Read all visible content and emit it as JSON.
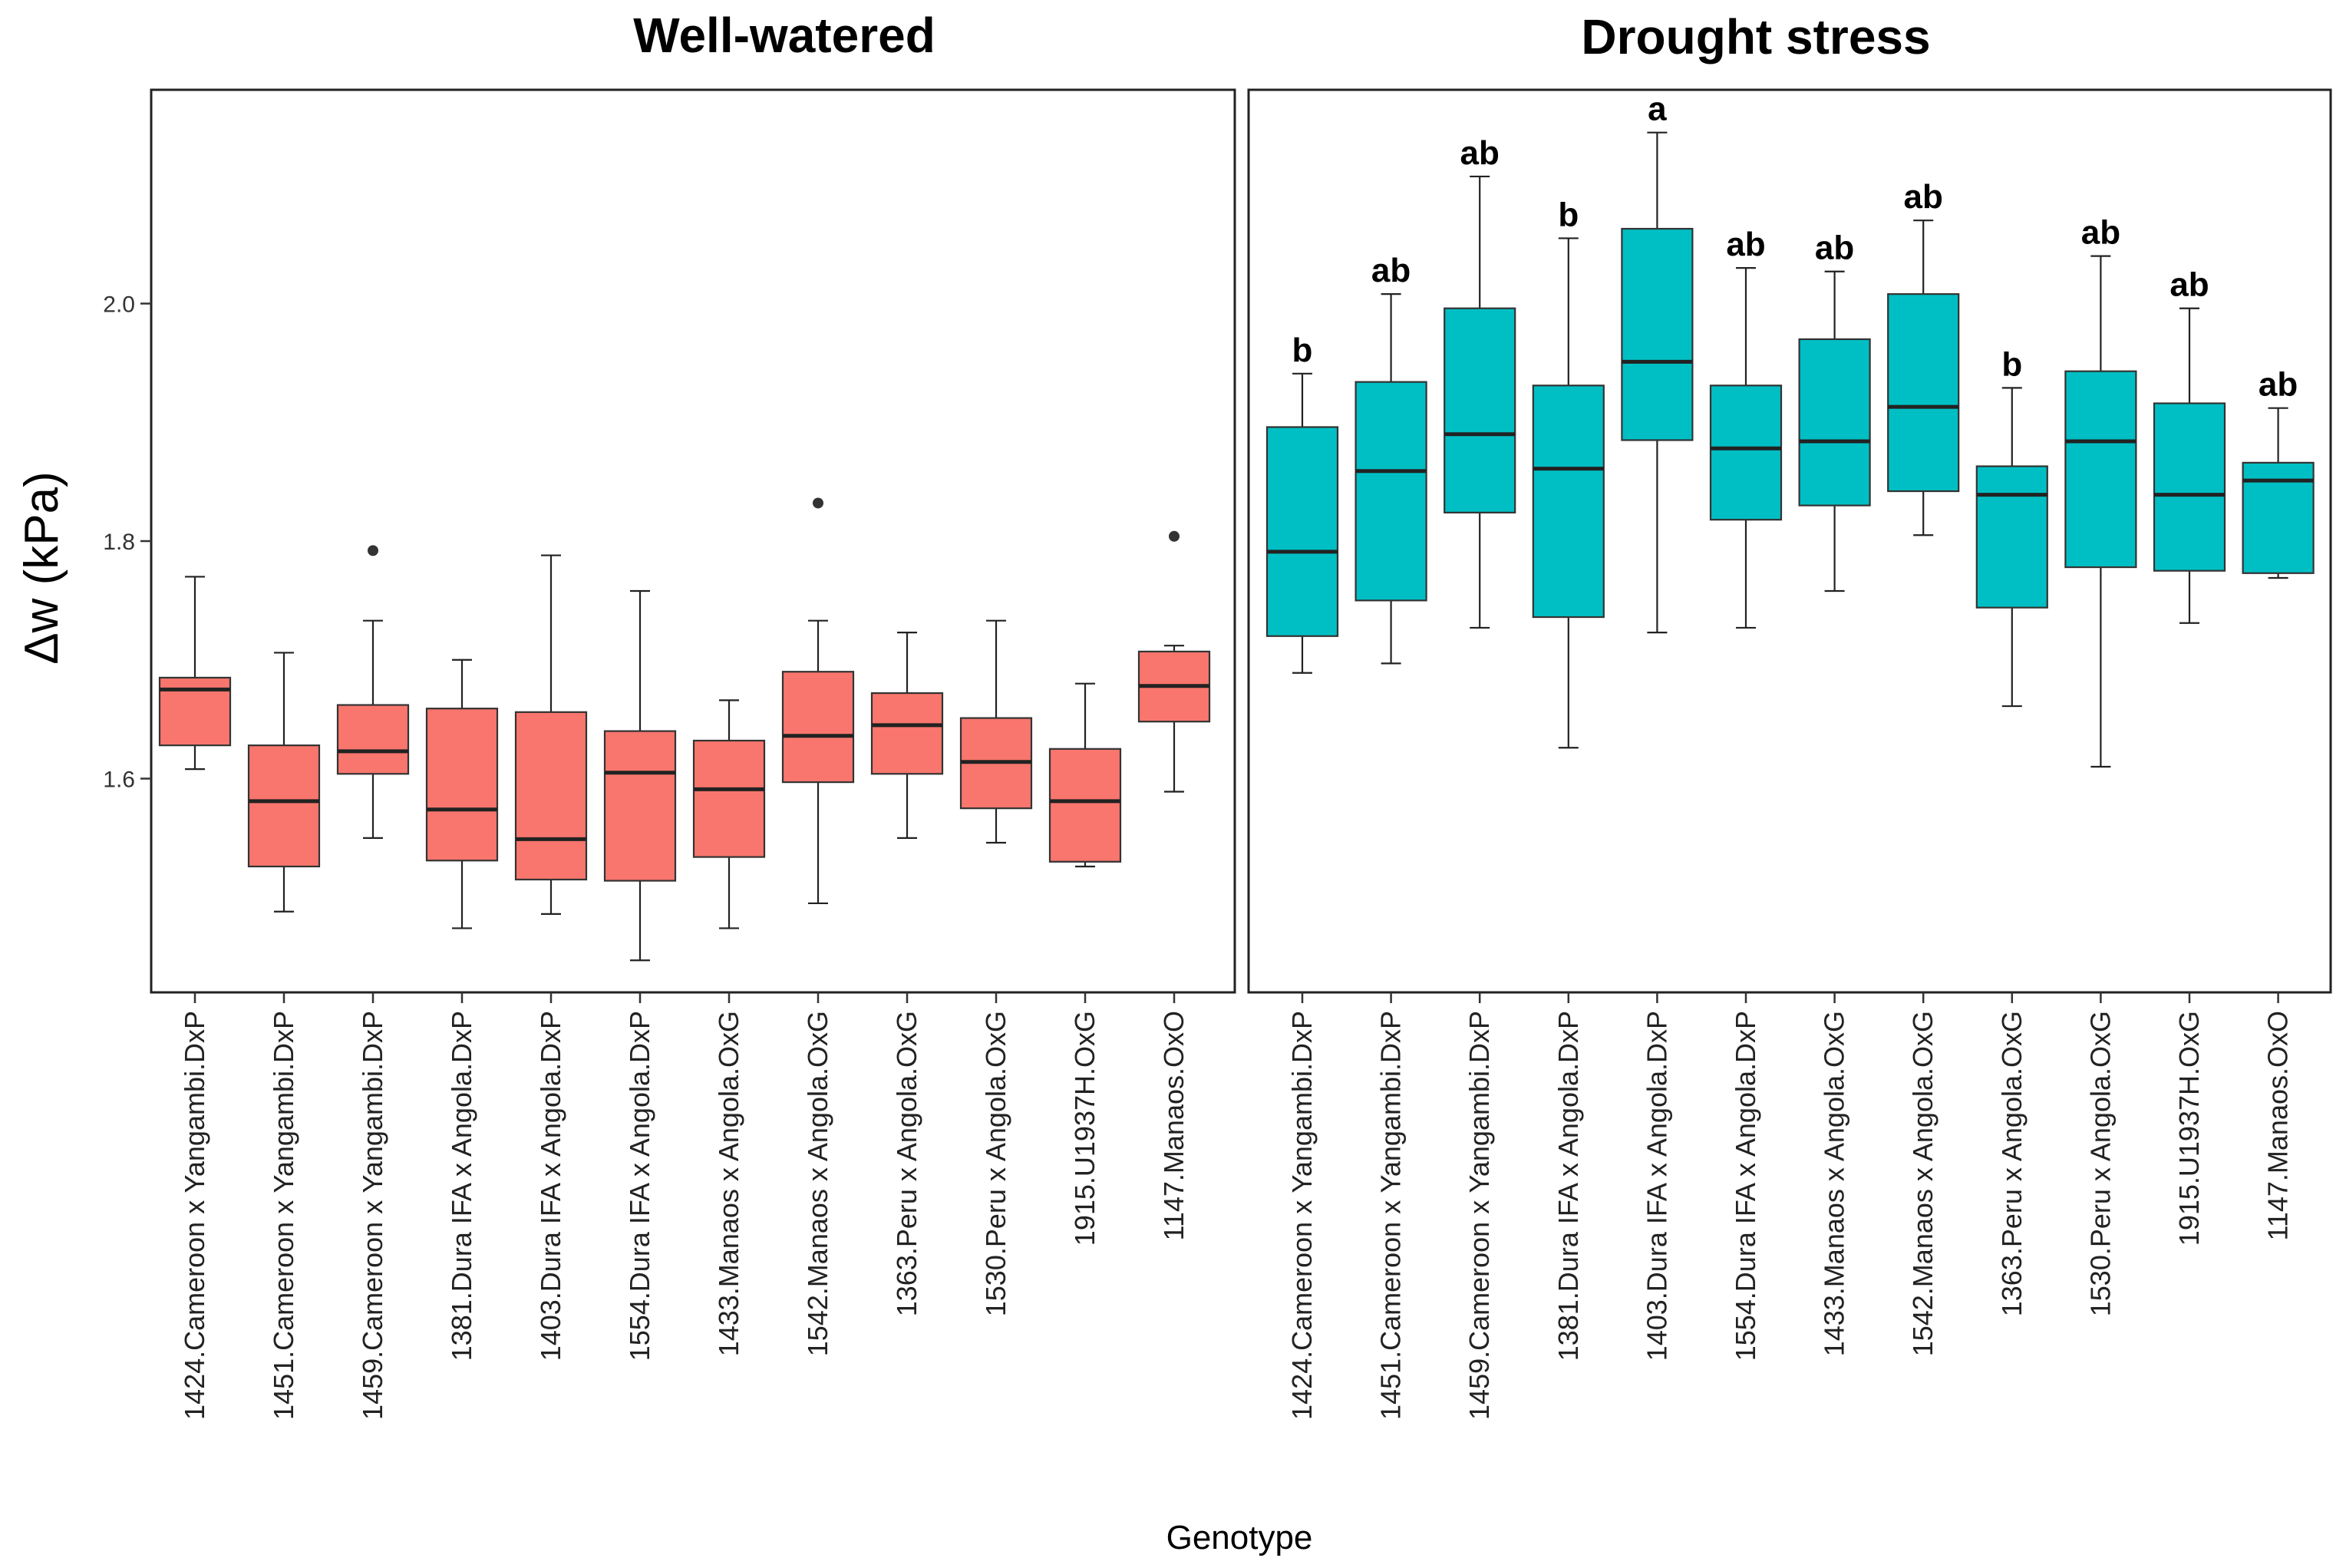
{
  "chart_data": {
    "type": "boxplot",
    "ylabel": "Δw (kPa)",
    "xlabel": "Genotype",
    "ylim": [
      1.42,
      2.18
    ],
    "yticks": [
      1.6,
      1.8,
      2.0
    ],
    "ytick_labels": [
      "1.6",
      "1.8",
      "2.0"
    ],
    "categories": [
      "1424.Cameroon x Yangambi.DxP",
      "1451.Cameroon x Yangambi.DxP",
      "1459.Cameroon x Yangambi.DxP",
      "1381.Dura IFA x Angola.DxP",
      "1403.Dura IFA x Angola.DxP",
      "1554.Dura IFA x Angola.DxP",
      "1433.Manaos x Angola.OxG",
      "1542.Manaos x Angola.OxG",
      "1363.Peru x Angola.OxG",
      "1530.Peru x Angola.OxG",
      "1915.U1937H.OxG",
      "1147.Manaos.OxO"
    ],
    "panels": [
      {
        "title": "Well-watered",
        "color": "#F8766D",
        "boxes": [
          {
            "min": 1.608,
            "q1": 1.628,
            "median": 1.675,
            "q3": 1.685,
            "max": 1.77,
            "outliers": []
          },
          {
            "min": 1.488,
            "q1": 1.526,
            "median": 1.581,
            "q3": 1.628,
            "max": 1.706,
            "outliers": []
          },
          {
            "min": 1.55,
            "q1": 1.604,
            "median": 1.623,
            "q3": 1.662,
            "max": 1.733,
            "outliers": [
              1.792
            ]
          },
          {
            "min": 1.474,
            "q1": 1.531,
            "median": 1.574,
            "q3": 1.659,
            "max": 1.7,
            "outliers": []
          },
          {
            "min": 1.486,
            "q1": 1.515,
            "median": 1.549,
            "q3": 1.656,
            "max": 1.788,
            "outliers": []
          },
          {
            "min": 1.447,
            "q1": 1.514,
            "median": 1.605,
            "q3": 1.64,
            "max": 1.758,
            "outliers": []
          },
          {
            "min": 1.474,
            "q1": 1.534,
            "median": 1.591,
            "q3": 1.632,
            "max": 1.666,
            "outliers": []
          },
          {
            "min": 1.495,
            "q1": 1.597,
            "median": 1.636,
            "q3": 1.69,
            "max": 1.733,
            "outliers": [
              1.832
            ]
          },
          {
            "min": 1.55,
            "q1": 1.604,
            "median": 1.645,
            "q3": 1.672,
            "max": 1.723,
            "outliers": []
          },
          {
            "min": 1.546,
            "q1": 1.575,
            "median": 1.614,
            "q3": 1.651,
            "max": 1.733,
            "outliers": []
          },
          {
            "min": 1.526,
            "q1": 1.53,
            "median": 1.581,
            "q3": 1.625,
            "max": 1.68,
            "outliers": []
          },
          {
            "min": 1.589,
            "q1": 1.648,
            "median": 1.678,
            "q3": 1.707,
            "max": 1.712,
            "outliers": [
              1.804
            ]
          }
        ],
        "labels": []
      },
      {
        "title": "Drought stress",
        "color": "#00BFC4",
        "boxes": [
          {
            "min": 1.689,
            "q1": 1.72,
            "median": 1.791,
            "q3": 1.896,
            "max": 1.941,
            "outliers": []
          },
          {
            "min": 1.697,
            "q1": 1.75,
            "median": 1.859,
            "q3": 1.934,
            "max": 2.008,
            "outliers": []
          },
          {
            "min": 1.727,
            "q1": 1.824,
            "median": 1.89,
            "q3": 1.996,
            "max": 2.107,
            "outliers": []
          },
          {
            "min": 1.626,
            "q1": 1.736,
            "median": 1.861,
            "q3": 1.931,
            "max": 2.055,
            "outliers": []
          },
          {
            "min": 1.723,
            "q1": 1.885,
            "median": 1.951,
            "q3": 2.063,
            "max": 2.144,
            "outliers": []
          },
          {
            "min": 1.727,
            "q1": 1.818,
            "median": 1.878,
            "q3": 1.931,
            "max": 2.03,
            "outliers": []
          },
          {
            "min": 1.758,
            "q1": 1.83,
            "median": 1.884,
            "q3": 1.97,
            "max": 2.027,
            "outliers": []
          },
          {
            "min": 1.805,
            "q1": 1.842,
            "median": 1.913,
            "q3": 2.008,
            "max": 2.07,
            "outliers": []
          },
          {
            "min": 1.661,
            "q1": 1.744,
            "median": 1.839,
            "q3": 1.863,
            "max": 1.929,
            "outliers": []
          },
          {
            "min": 1.61,
            "q1": 1.778,
            "median": 1.884,
            "q3": 1.943,
            "max": 2.04,
            "outliers": []
          },
          {
            "min": 1.731,
            "q1": 1.775,
            "median": 1.839,
            "q3": 1.916,
            "max": 1.996,
            "outliers": []
          },
          {
            "min": 1.769,
            "q1": 1.773,
            "median": 1.851,
            "q3": 1.866,
            "max": 1.912,
            "outliers": []
          }
        ],
        "labels": [
          "b",
          "ab",
          "ab",
          "b",
          "a",
          "ab",
          "ab",
          "ab",
          "b",
          "ab",
          "ab",
          "ab"
        ]
      }
    ]
  }
}
